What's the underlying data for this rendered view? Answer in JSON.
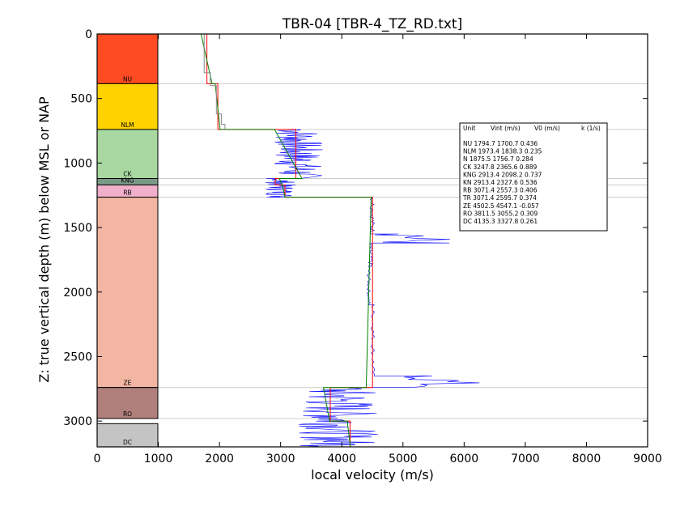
{
  "chart_data": {
    "type": "line",
    "title": "TBR-04 [TBR-4_TZ_RD.txt]",
    "xlabel": "local velocity (m/s)",
    "ylabel": "Z: true vertical depth (m) below MSL or NAP",
    "xlim": [
      0,
      9000
    ],
    "ylim": [
      3200,
      0
    ],
    "xticks": [
      "0",
      "1000",
      "2000",
      "3000",
      "4000",
      "5000",
      "6000",
      "7000",
      "8000",
      "9000"
    ],
    "yticks": [
      "0",
      "500",
      "1000",
      "1500",
      "2000",
      "2500",
      "3000"
    ],
    "grid": false,
    "units": [
      {
        "name": "NU",
        "top": 0,
        "base": 385,
        "color": "#ff4b22"
      },
      {
        "name": "NLM",
        "top": 385,
        "base": 740,
        "color": "#ffd200"
      },
      {
        "name": "CK",
        "top": 740,
        "base": 1120,
        "color": "#a8d8a0"
      },
      {
        "name": "KNG",
        "top": 1120,
        "base": 1170,
        "color": "#7a9a86"
      },
      {
        "name": "RB",
        "top": 1170,
        "base": 1265,
        "color": "#f0b0cc"
      },
      {
        "name": "ZE",
        "top": 1265,
        "base": 2740,
        "color": "#f2b6a2"
      },
      {
        "name": "RO",
        "top": 2740,
        "base": 2980,
        "color": "#b07f7c"
      },
      {
        "name": "DC",
        "top": 3020,
        "base": 3200,
        "color": "#c4c4c4"
      }
    ],
    "legend": {
      "header": {
        "unit": "Unit",
        "vint": "Vint (m/s)",
        "v0": "V0 (m/s)",
        "k": "k (1/s)"
      },
      "rows": [
        "NU      1794.7  1700.7  0.436",
        "NLM    1973.4  1838.3  0.235",
        "N       1875.5  1756.7  0.284",
        "CK      3247.8  2365.6  0.889",
        "KNG     2913.4  2098.2  0.737",
        "KN      2913.4  2327.6  0.536",
        "RB      3071.4  2557.3  0.406",
        "TR      3071.4  2595.7  0.374",
        "ZE      4502.5  4547.1  -0.057",
        "RO      3811.5  3055.2  0.309",
        "DC      4135.3  3327.8  0.261"
      ]
    },
    "series": [
      {
        "color": "#ff0000",
        "points": [
          [
            1795,
            0
          ],
          [
            1795,
            385
          ],
          [
            1973,
            385
          ],
          [
            1973,
            740
          ],
          [
            3248,
            740
          ],
          [
            3248,
            1120
          ],
          [
            2913,
            1120
          ],
          [
            2913,
            1170
          ],
          [
            3071,
            1170
          ],
          [
            3071,
            1265
          ],
          [
            4503,
            1265
          ],
          [
            4503,
            2740
          ],
          [
            3812,
            2740
          ],
          [
            3812,
            3000
          ],
          [
            4135,
            3000
          ],
          [
            4135,
            3200
          ]
        ]
      },
      {
        "color": "#008000",
        "points": [
          [
            1700,
            0
          ],
          [
            1880,
            385
          ],
          [
            1930,
            385
          ],
          [
            2010,
            740
          ],
          [
            2900,
            740
          ],
          [
            3350,
            1120
          ],
          [
            2980,
            1120
          ],
          [
            3020,
            1170
          ],
          [
            3030,
            1170
          ],
          [
            3070,
            1265
          ],
          [
            4480,
            1265
          ],
          [
            4400,
            2740
          ],
          [
            3700,
            2740
          ],
          [
            3800,
            3000
          ],
          [
            4090,
            3000
          ],
          [
            4140,
            3200
          ]
        ]
      },
      {
        "color": "#888888",
        "points": [
          [
            1750,
            0
          ],
          [
            1750,
            300
          ],
          [
            1850,
            300
          ],
          [
            1850,
            400
          ],
          [
            1950,
            400
          ],
          [
            1950,
            620
          ],
          [
            2030,
            620
          ],
          [
            2030,
            700
          ],
          [
            2090,
            700
          ],
          [
            2090,
            740
          ]
        ]
      }
    ],
    "measured": {
      "color": "#0000ff",
      "segments": [
        {
          "from": 740,
          "to": 1120,
          "base": 3280,
          "amp": 420,
          "n": 80
        },
        {
          "from": 1120,
          "to": 1265,
          "base": 3000,
          "amp": 250,
          "n": 40
        },
        {
          "from": 1265,
          "to": 1550,
          "base": 4500,
          "amp": 40,
          "n": 30
        },
        {
          "from": 1550,
          "to": 1620,
          "base": 5200,
          "amp": 700,
          "n": 10
        },
        {
          "from": 1620,
          "to": 1800,
          "base": 4470,
          "amp": 40,
          "n": 20
        },
        {
          "from": 1800,
          "to": 2100,
          "base": 4440,
          "amp": 30,
          "n": 30
        },
        {
          "from": 2100,
          "to": 2650,
          "base": 4510,
          "amp": 30,
          "n": 40
        },
        {
          "from": 2650,
          "to": 2740,
          "base": 5600,
          "amp": 700,
          "n": 10
        },
        {
          "from": 2740,
          "to": 3200,
          "base": 3950,
          "amp": 650,
          "n": 90
        }
      ]
    }
  }
}
